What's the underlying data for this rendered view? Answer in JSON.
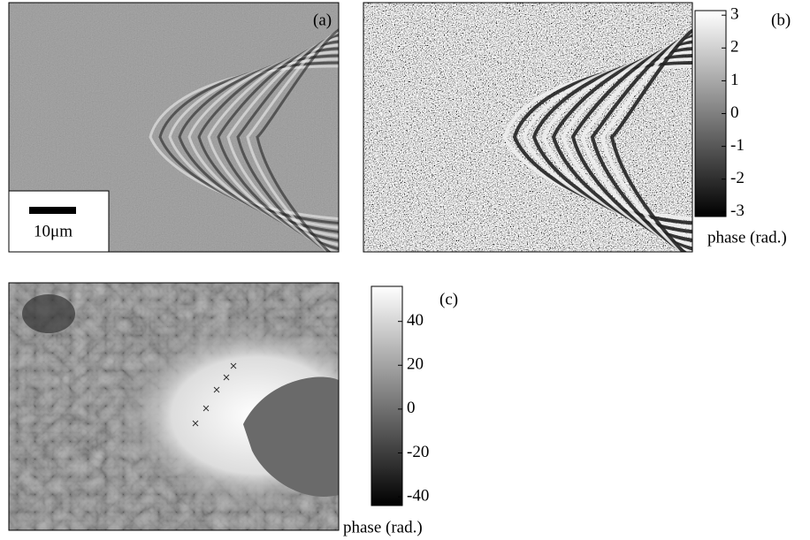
{
  "panel_a": {
    "label": "(a)",
    "scale_bar": "10μm"
  },
  "panel_b": {
    "label": "(b)",
    "colorbar": {
      "lim": [
        -3.14,
        3.14
      ],
      "ticks": [
        3,
        2,
        1,
        0,
        -1,
        -2,
        -3
      ],
      "label": "phase (rad.)"
    }
  },
  "panel_c": {
    "label": "(c)",
    "colorbar": {
      "lim": [
        -44,
        56
      ],
      "ticks": [
        40,
        20,
        0,
        -20,
        -40
      ],
      "label": "phase (rad.)"
    }
  }
}
